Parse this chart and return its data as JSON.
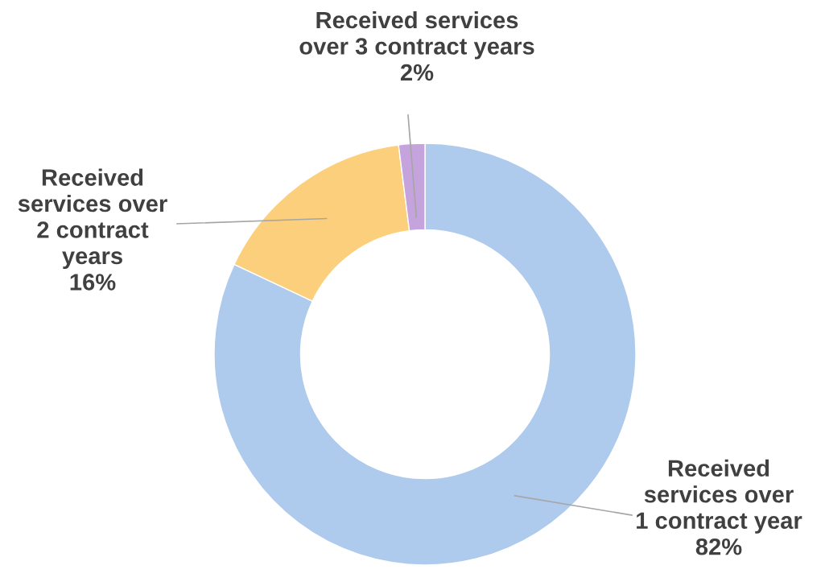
{
  "chart_data": {
    "type": "donut",
    "categories": [
      "Received\nservices over\n1 contract year",
      "Received\nservices over\n2 contract\nyears",
      "Received services\nover 3 contract years"
    ],
    "values": [
      82,
      16,
      2
    ],
    "value_labels": [
      "82%",
      "16%",
      "2%"
    ],
    "colors": [
      "#aecaec",
      "#fbcf7c",
      "#c5a3dc"
    ]
  }
}
